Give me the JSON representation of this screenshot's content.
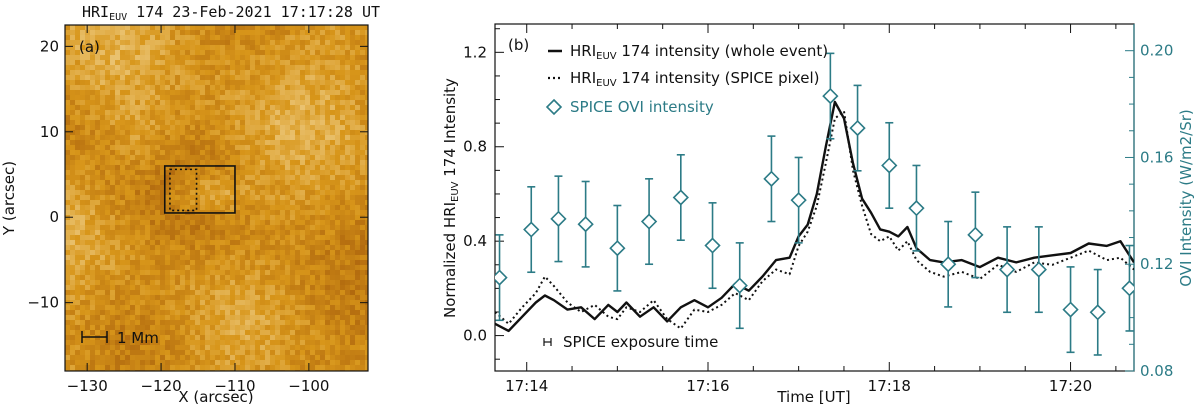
{
  "chart_data": [
    {
      "type": "heatmap",
      "title_prefix": "HRI",
      "title_sub": "EUV",
      "title_suffix": " 174  23-Feb-2021  17:17:28  UT",
      "panel_label": "(a)",
      "xlabel": "X (arcsec)",
      "ylabel": "Y (arcsec)",
      "xlim": [
        -133,
        -92
      ],
      "ylim": [
        -18,
        22.5
      ],
      "xticks": [
        -130,
        -120,
        -110,
        -100
      ],
      "yticks": [
        -10,
        0,
        10,
        20
      ],
      "scale_bar_label": "1 Mm",
      "boxes": [
        {
          "name": "whole-event-box",
          "x": [
            -119.5,
            -110
          ],
          "y": [
            0.5,
            6
          ],
          "style": "solid"
        },
        {
          "name": "spice-pixel-box",
          "x": [
            -118.8,
            -115.2
          ],
          "y": [
            0.8,
            5.6
          ],
          "style": "dotted"
        }
      ]
    },
    {
      "type": "line",
      "panel_label": "(b)",
      "xlabel": "Time [UT]",
      "ylabel_prefix": "Normalized HRI",
      "ylabel_sub": "EUV",
      "ylabel_suffix": " 174 Intensity",
      "y2label": "OVI Intensity (W/m2/Sr)",
      "xlim_minutes": [
        13.65,
        20.7
      ],
      "ylim": [
        -0.15,
        1.32
      ],
      "y2lim": [
        0.08,
        0.21
      ],
      "xtick_labels": [
        "17:14",
        "17:16",
        "17:18",
        "17:20"
      ],
      "xtick_minutes": [
        14,
        16,
        18,
        20
      ],
      "yticks": [
        "0.0",
        "0.4",
        "0.8",
        "1.2"
      ],
      "y2ticks": [
        "0.08",
        "0.12",
        "0.16",
        "0.20"
      ],
      "legend": [
        {
          "prefix": "HRI",
          "sub": "EUV",
          "suffix": " 174 intensity (whole event)",
          "style": "solid"
        },
        {
          "prefix": "HRI",
          "sub": "EUV",
          "suffix": " 174 intensity (SPICE pixel)",
          "style": "dotted"
        },
        {
          "prefix": "SPICE OVI intensity",
          "sub": "",
          "suffix": "",
          "style": "diamond"
        }
      ],
      "exposure_label": "SPICE exposure time",
      "series": [
        {
          "name": "HRIEUV 174 intensity (whole event)",
          "x": [
            13.65,
            13.8,
            13.95,
            14.1,
            14.2,
            14.3,
            14.45,
            14.6,
            14.75,
            14.9,
            15.0,
            15.1,
            15.25,
            15.4,
            15.55,
            15.7,
            15.85,
            16.0,
            16.15,
            16.3,
            16.45,
            16.6,
            16.75,
            16.9,
            17.0,
            17.1,
            17.2,
            17.3,
            17.4,
            17.5,
            17.6,
            17.7,
            17.8,
            17.9,
            18.0,
            18.1,
            18.2,
            18.3,
            18.45,
            18.6,
            18.8,
            19.0,
            19.2,
            19.4,
            19.6,
            19.8,
            20.0,
            20.2,
            20.4,
            20.55,
            20.7
          ],
          "values": [
            0.05,
            0.02,
            0.08,
            0.14,
            0.17,
            0.15,
            0.11,
            0.12,
            0.07,
            0.13,
            0.1,
            0.14,
            0.08,
            0.12,
            0.06,
            0.12,
            0.15,
            0.12,
            0.16,
            0.22,
            0.19,
            0.25,
            0.32,
            0.33,
            0.42,
            0.47,
            0.6,
            0.8,
            0.99,
            0.92,
            0.73,
            0.58,
            0.52,
            0.45,
            0.44,
            0.42,
            0.46,
            0.37,
            0.32,
            0.31,
            0.32,
            0.29,
            0.33,
            0.31,
            0.33,
            0.34,
            0.35,
            0.39,
            0.38,
            0.4,
            0.31
          ]
        },
        {
          "name": "HRIEUV 174 intensity (SPICE pixel)",
          "x": [
            13.65,
            13.8,
            13.95,
            14.1,
            14.2,
            14.3,
            14.45,
            14.6,
            14.75,
            14.9,
            15.0,
            15.1,
            15.25,
            15.4,
            15.55,
            15.7,
            15.85,
            16.0,
            16.15,
            16.3,
            16.45,
            16.6,
            16.75,
            16.9,
            17.0,
            17.1,
            17.2,
            17.3,
            17.4,
            17.5,
            17.6,
            17.7,
            17.8,
            17.9,
            18.0,
            18.1,
            18.2,
            18.3,
            18.45,
            18.6,
            18.8,
            19.0,
            19.2,
            19.4,
            19.6,
            19.8,
            20.0,
            20.2,
            20.4,
            20.55,
            20.7
          ],
          "values": [
            0.1,
            0.05,
            0.12,
            0.18,
            0.25,
            0.21,
            0.14,
            0.1,
            0.13,
            0.08,
            0.07,
            0.12,
            0.1,
            0.15,
            0.07,
            0.03,
            0.11,
            0.1,
            0.13,
            0.18,
            0.15,
            0.23,
            0.28,
            0.26,
            0.38,
            0.44,
            0.55,
            0.73,
            0.92,
            0.95,
            0.7,
            0.55,
            0.43,
            0.4,
            0.42,
            0.36,
            0.4,
            0.32,
            0.27,
            0.25,
            0.27,
            0.24,
            0.3,
            0.27,
            0.31,
            0.3,
            0.33,
            0.36,
            0.32,
            0.33,
            0.28
          ]
        },
        {
          "name": "SPICE OVI intensity",
          "axis": "right",
          "x": [
            13.7,
            14.05,
            14.35,
            14.65,
            15.0,
            15.35,
            15.7,
            16.05,
            16.35,
            16.7,
            17.0,
            17.35,
            17.65,
            18.0,
            18.3,
            18.65,
            18.95,
            19.3,
            19.65,
            20.0,
            20.3,
            20.65
          ],
          "values": [
            0.115,
            0.133,
            0.137,
            0.135,
            0.126,
            0.136,
            0.145,
            0.127,
            0.112,
            0.152,
            0.144,
            0.183,
            0.171,
            0.157,
            0.141,
            0.12,
            0.131,
            0.118,
            0.118,
            0.103,
            0.102,
            0.111
          ],
          "error": [
            0.016,
            0.016,
            0.016,
            0.016,
            0.016,
            0.016,
            0.016,
            0.016,
            0.016,
            0.016,
            0.016,
            0.016,
            0.016,
            0.016,
            0.016,
            0.016,
            0.016,
            0.016,
            0.016,
            0.016,
            0.016,
            0.016
          ]
        }
      ]
    }
  ],
  "colors": {
    "accent_teal": "#2c7b86",
    "map_base": "#d8961a",
    "map_bright": "#ffffff",
    "map_dark": "#a85c00"
  }
}
